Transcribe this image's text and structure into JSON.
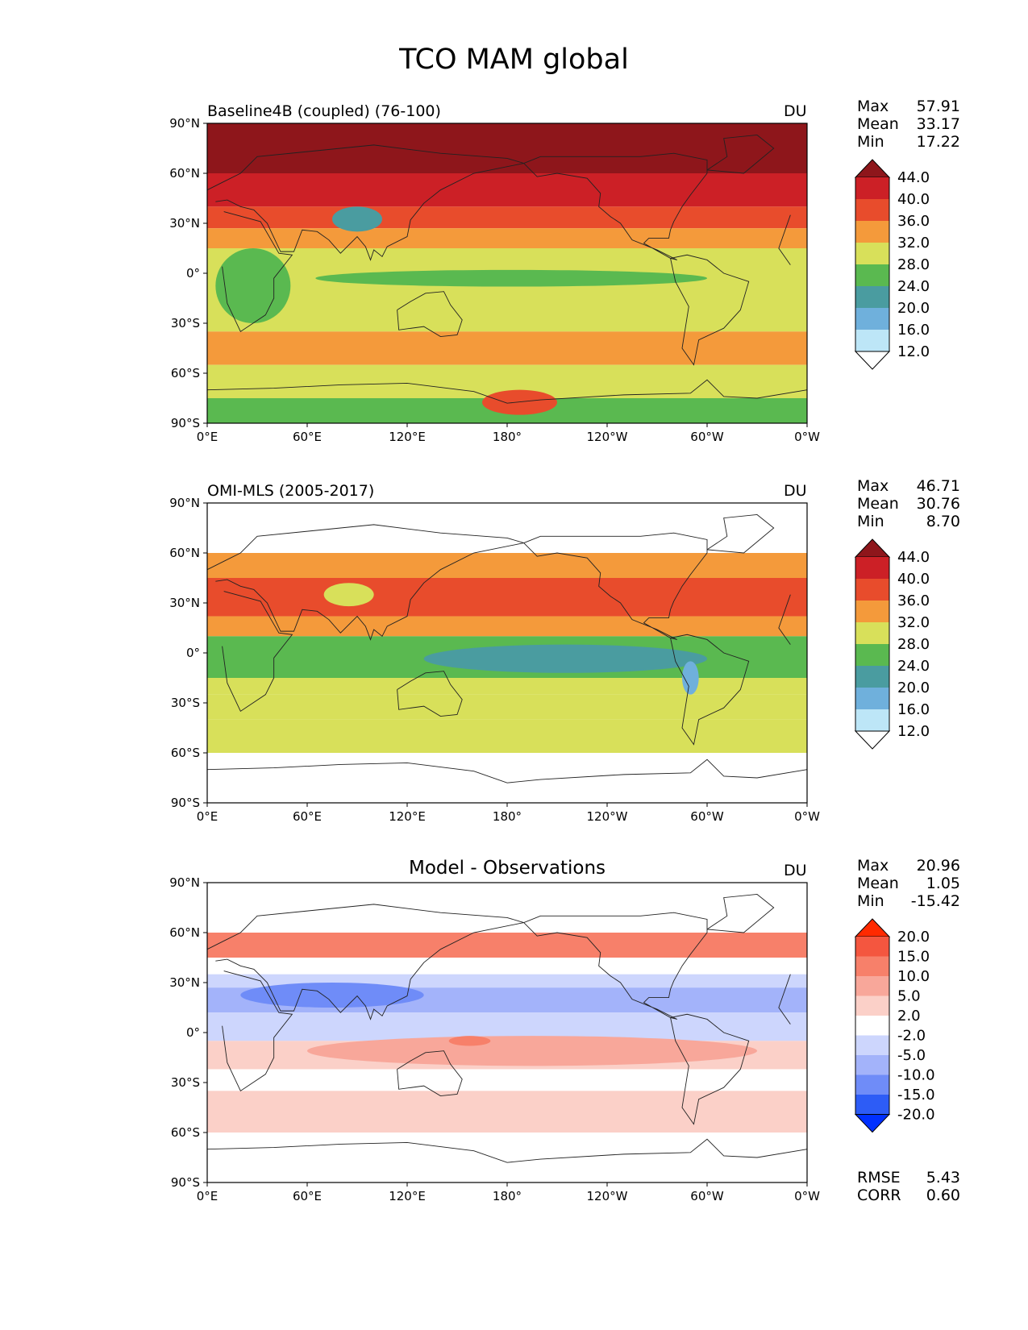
{
  "figure": {
    "title": "TCO MAM global"
  },
  "axes": {
    "xticks": [
      "0°E",
      "60°E",
      "120°E",
      "180°",
      "120°W",
      "60°W",
      "0°W"
    ],
    "yticks": [
      "90°N",
      "60°N",
      "30°N",
      "0°",
      "30°S",
      "60°S",
      "90°S"
    ]
  },
  "colors": {
    "abs_levels": [
      "#ffffff",
      "#bde6f7",
      "#6fb0dc",
      "#4a9ca0",
      "#5ab950",
      "#d8e05a",
      "#f49a3b",
      "#e84c2c",
      "#cc2026",
      "#8e161b"
    ],
    "diff_levels": [
      "#0030ff",
      "#2d5cf6",
      "#6f8cf8",
      "#a3b3fa",
      "#cdd6fd",
      "#ffffff",
      "#fbd0c8",
      "#f8a79a",
      "#f7806a",
      "#f4563f",
      "#ff2a00"
    ]
  },
  "chart_data": [
    {
      "type": "heatmap",
      "title": "Baseline4B (coupled) (76-100)",
      "units": "DU",
      "xlabel": "",
      "ylabel": "",
      "xlim": [
        0,
        360
      ],
      "ylim": [
        -90,
        90
      ],
      "stats": {
        "max": "57.91",
        "mean": "33.17",
        "min": "17.22"
      },
      "colorbar": {
        "levels": [
          "44.0",
          "40.0",
          "36.0",
          "32.0",
          "28.0",
          "24.0",
          "20.0",
          "16.0",
          "12.0"
        ],
        "extend": "both"
      },
      "zonal_bands": [
        {
          "lat": [
            60,
            90
          ],
          "value": 46
        },
        {
          "lat": [
            40,
            60
          ],
          "value": 42
        },
        {
          "lat": [
            27,
            40
          ],
          "value": 38
        },
        {
          "lat": [
            15,
            27
          ],
          "value": 34
        },
        {
          "lat": [
            -35,
            15
          ],
          "value": 30
        },
        {
          "lat": [
            -55,
            -35
          ],
          "value": 34
        },
        {
          "lat": [
            -75,
            -55
          ],
          "value": 30
        },
        {
          "lat": [
            -90,
            -75
          ],
          "value": 26
        }
      ],
      "features": [
        {
          "name": "tropical low band",
          "lon": [
            65,
            300
          ],
          "lat": [
            -8,
            2
          ],
          "value": 26
        },
        {
          "name": "Africa low",
          "lon": [
            5,
            50
          ],
          "lat": [
            -30,
            15
          ],
          "value": 26
        },
        {
          "name": "Tibetan low",
          "lon": [
            75,
            105
          ],
          "lat": [
            25,
            40
          ],
          "value": 22
        },
        {
          "name": "Antarctic high",
          "lon": [
            165,
            210
          ],
          "lat": [
            -85,
            -70
          ],
          "value": 38
        }
      ]
    },
    {
      "type": "heatmap",
      "title": "OMI-MLS (2005-2017)",
      "units": "DU",
      "xlabel": "",
      "ylabel": "",
      "xlim": [
        0,
        360
      ],
      "ylim": [
        -90,
        90
      ],
      "data_lat_range": [
        -60,
        60
      ],
      "stats": {
        "max": "46.71",
        "mean": "30.76",
        "min": "8.70"
      },
      "colorbar": {
        "levels": [
          "44.0",
          "40.0",
          "36.0",
          "32.0",
          "28.0",
          "24.0",
          "20.0",
          "16.0",
          "12.0"
        ],
        "extend": "both"
      },
      "zonal_bands": [
        {
          "lat": [
            45,
            60
          ],
          "value": 34
        },
        {
          "lat": [
            22,
            45
          ],
          "value": 38
        },
        {
          "lat": [
            10,
            22
          ],
          "value": 34
        },
        {
          "lat": [
            -15,
            10
          ],
          "value": 26
        },
        {
          "lat": [
            -25,
            -15
          ],
          "value": 30
        },
        {
          "lat": [
            -40,
            -25
          ],
          "value": 30
        },
        {
          "lat": [
            -60,
            -40
          ],
          "value": 30
        }
      ],
      "features": [
        {
          "name": "Pacific low",
          "lon": [
            130,
            300
          ],
          "lat": [
            -12,
            5
          ],
          "value": 22
        },
        {
          "name": "Andes low",
          "lon": [
            285,
            295
          ],
          "lat": [
            -25,
            -5
          ],
          "value": 18
        },
        {
          "name": "Tibetan low",
          "lon": [
            70,
            100
          ],
          "lat": [
            28,
            42
          ],
          "value": 30
        }
      ]
    },
    {
      "type": "heatmap",
      "title": "Model - Observations",
      "units": "DU",
      "xlabel": "",
      "ylabel": "",
      "xlim": [
        0,
        360
      ],
      "ylim": [
        -90,
        90
      ],
      "data_lat_range": [
        -60,
        60
      ],
      "stats": {
        "max": "20.96",
        "mean": "1.05",
        "min": "-15.42"
      },
      "colorbar": {
        "levels": [
          "20.0",
          "15.0",
          "10.0",
          "5.0",
          "2.0",
          "-2.0",
          "-5.0",
          "-10.0",
          "-15.0",
          "-20.0"
        ],
        "extend": "both"
      },
      "zonal_bands": [
        {
          "lat": [
            45,
            60
          ],
          "value": 12
        },
        {
          "lat": [
            35,
            45
          ],
          "value": 0
        },
        {
          "lat": [
            27,
            35
          ],
          "value": -4
        },
        {
          "lat": [
            12,
            27
          ],
          "value": -8
        },
        {
          "lat": [
            -5,
            12
          ],
          "value": -3
        },
        {
          "lat": [
            -22,
            -5
          ],
          "value": 4
        },
        {
          "lat": [
            -35,
            -22
          ],
          "value": 0
        },
        {
          "lat": [
            -60,
            -35
          ],
          "value": 4
        }
      ],
      "features": [
        {
          "name": "Indian low",
          "lon": [
            20,
            130
          ],
          "lat": [
            15,
            30
          ],
          "value": -12
        },
        {
          "name": "Pacific high",
          "lon": [
            60,
            330
          ],
          "lat": [
            -20,
            -2
          ],
          "value": 7
        },
        {
          "name": "Pacific max",
          "lon": [
            145,
            170
          ],
          "lat": [
            -8,
            -2
          ],
          "value": 12
        }
      ],
      "rmse": "5.43",
      "corr": "0.60"
    }
  ],
  "labels": {
    "max": "Max",
    "mean": "Mean",
    "min": "Min",
    "rmse": "RMSE",
    "corr": "CORR"
  }
}
